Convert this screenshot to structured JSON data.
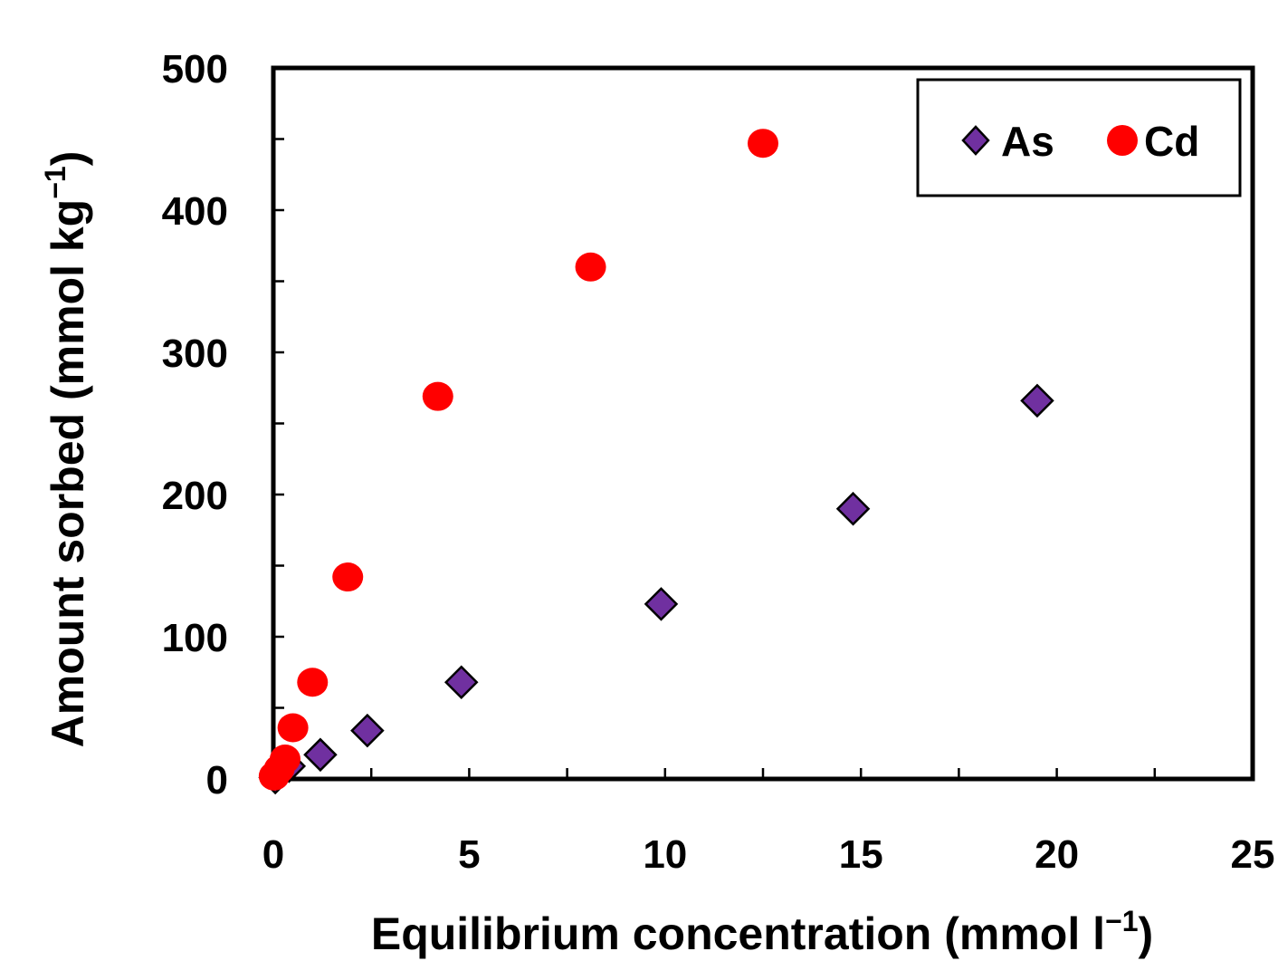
{
  "chart_data": {
    "type": "scatter",
    "xlabel": "Equilibrium concentration (mmol l",
    "xlabel_sup": "−1",
    "xlabel_end": ")",
    "ylabel": "Amount sorbed (mmol kg",
    "ylabel_sup": "−1",
    "ylabel_end": ")",
    "xlim": [
      0,
      25
    ],
    "ylim": [
      0,
      500
    ],
    "xticks": [
      "0",
      "5",
      "10",
      "15",
      "20",
      "25"
    ],
    "yticks": [
      "0",
      "100",
      "200",
      "300",
      "400",
      "500"
    ],
    "grid": false,
    "legend_position": "top-right",
    "series": [
      {
        "name": "As",
        "marker": "diamond",
        "color": "#7030A0",
        "points": [
          {
            "x": 0.05,
            "y": 1
          },
          {
            "x": 0.2,
            "y": 5
          },
          {
            "x": 0.4,
            "y": 9
          },
          {
            "x": 1.2,
            "y": 17
          },
          {
            "x": 2.4,
            "y": 34
          },
          {
            "x": 4.8,
            "y": 68
          },
          {
            "x": 9.9,
            "y": 123
          },
          {
            "x": 14.8,
            "y": 190
          },
          {
            "x": 19.5,
            "y": 266
          }
        ]
      },
      {
        "name": "Cd",
        "marker": "circle",
        "color": "#FF0000",
        "points": [
          {
            "x": 0.02,
            "y": 2
          },
          {
            "x": 0.15,
            "y": 7
          },
          {
            "x": 0.3,
            "y": 14
          },
          {
            "x": 0.5,
            "y": 36
          },
          {
            "x": 1.0,
            "y": 68
          },
          {
            "x": 1.9,
            "y": 142
          },
          {
            "x": 4.2,
            "y": 269
          },
          {
            "x": 8.1,
            "y": 360
          },
          {
            "x": 12.5,
            "y": 447
          }
        ]
      }
    ]
  }
}
